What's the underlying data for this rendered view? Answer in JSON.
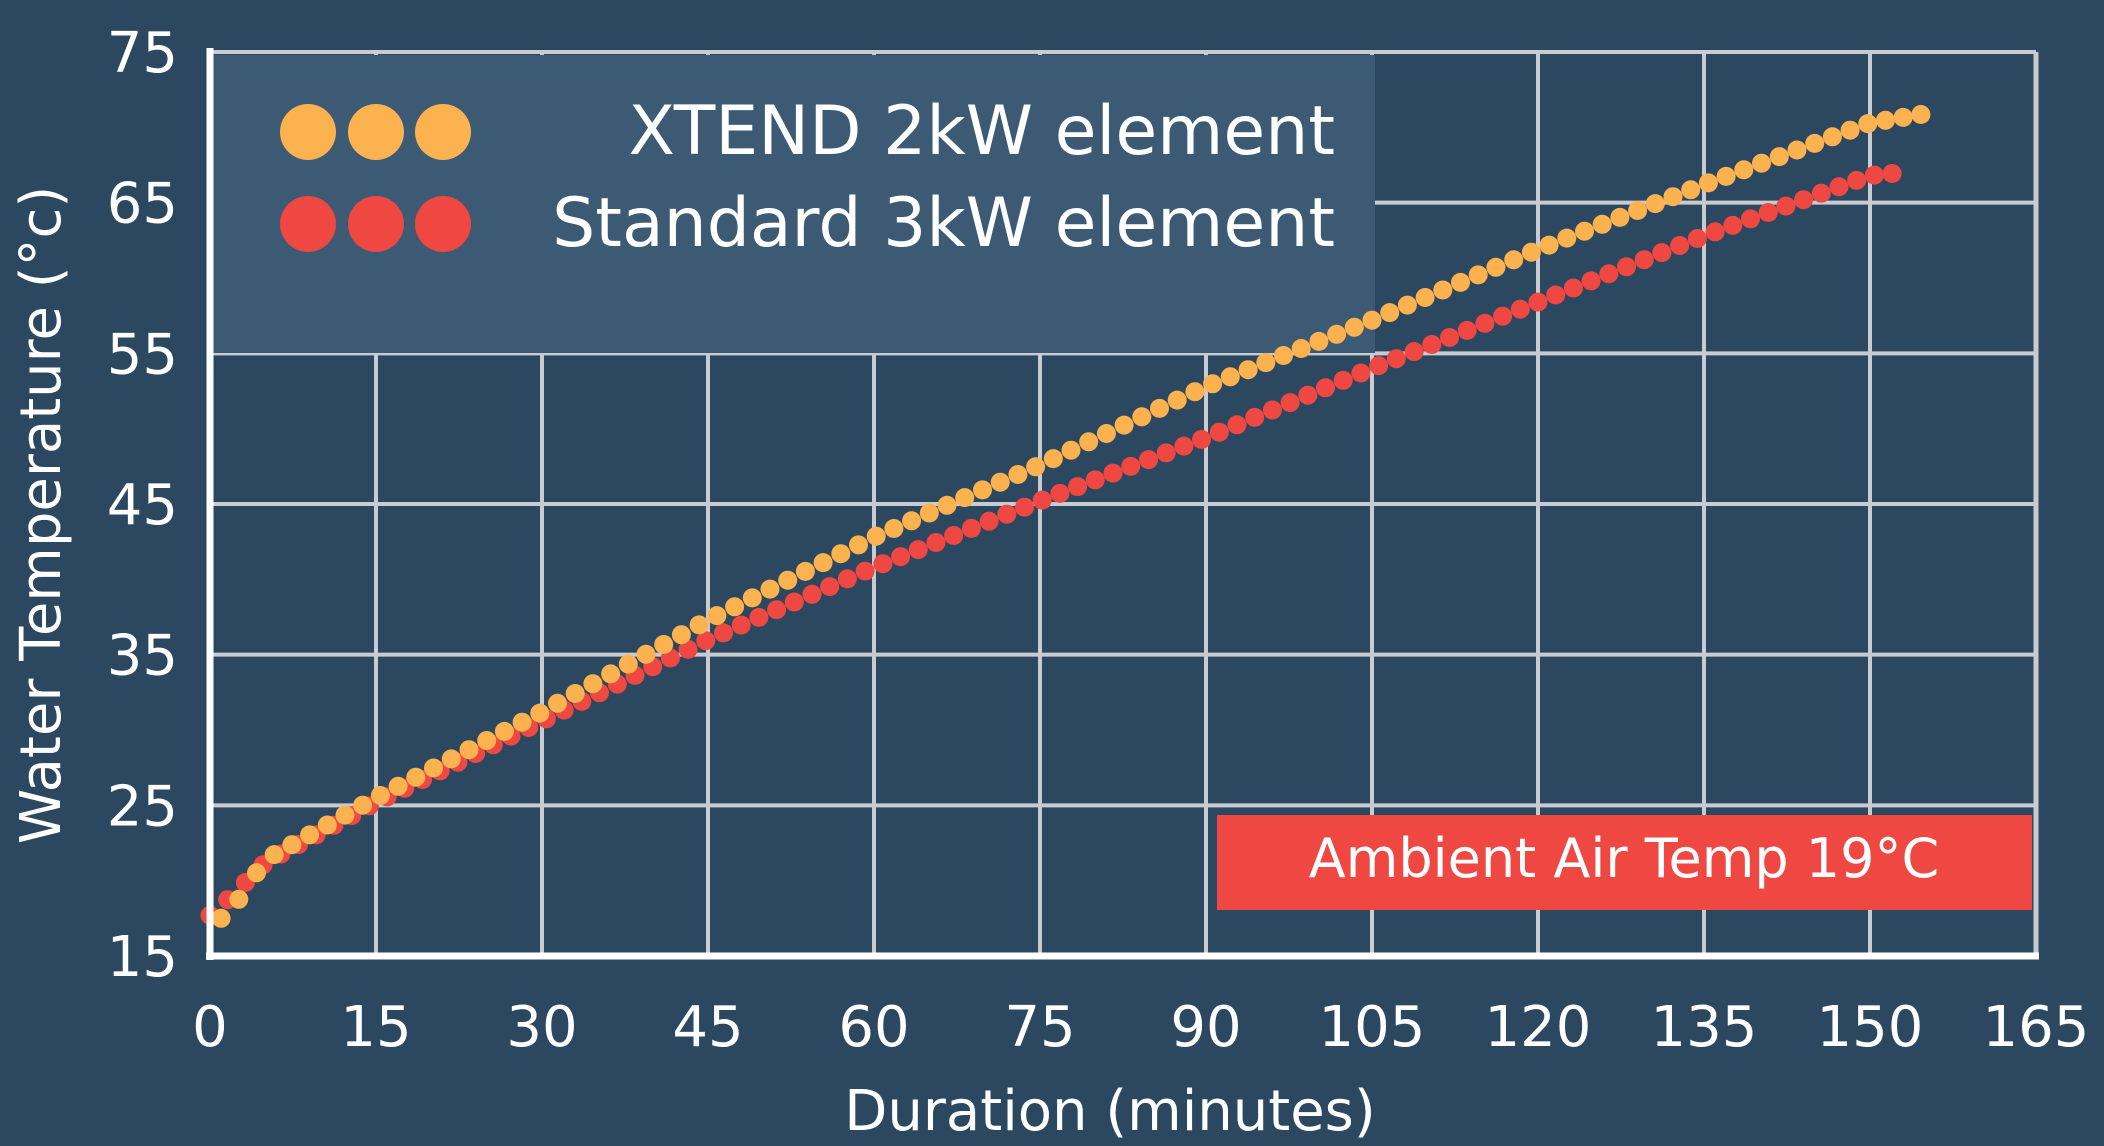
{
  "colors": {
    "background": "#2c4861",
    "grid": "#c8ccd1",
    "legend_box": "#3d5a75",
    "xtend": "#fbb24f",
    "standard": "#ef4842",
    "text": "#ffffff",
    "annotation_bg": "#ef4842"
  },
  "chart_data": {
    "type": "scatter",
    "title": "",
    "xlabel": "Duration (minutes)",
    "ylabel": "Water Temperature (°c)",
    "xlim": [
      0,
      165
    ],
    "ylim": [
      15,
      75
    ],
    "x_ticks": [
      "0",
      "15",
      "30",
      "45",
      "60",
      "75",
      "90",
      "105",
      "120",
      "135",
      "150",
      "165"
    ],
    "y_ticks": [
      "15",
      "25",
      "35",
      "45",
      "55",
      "65",
      "75"
    ],
    "grid": true,
    "legend_position": "top-left",
    "annotation": "Ambient Air Temp 19°C",
    "series": [
      {
        "name": "XTEND 2kW element",
        "color": "#fbb24f",
        "x_start": 1,
        "x_end": 155,
        "x_step": 1.6,
        "curve": [
          [
            1,
            17.5
          ],
          [
            2,
            18.1
          ],
          [
            5,
            21.4
          ],
          [
            15,
            25.5
          ],
          [
            30,
            31.2
          ],
          [
            45,
            37.3
          ],
          [
            60,
            42.8
          ],
          [
            75,
            47.6
          ],
          [
            90,
            52.8
          ],
          [
            105,
            57.2
          ],
          [
            120,
            61.9
          ],
          [
            135,
            66.2
          ],
          [
            150,
            70.3
          ],
          [
            155,
            70.9
          ]
        ]
      },
      {
        "name": "Standard 3kW element",
        "color": "#ef4842",
        "x_start": 0,
        "x_end": 153,
        "x_step": 1.6,
        "curve": [
          [
            0,
            17.7
          ],
          [
            2,
            19.0
          ],
          [
            5,
            21.2
          ],
          [
            15,
            25.2
          ],
          [
            30,
            30.6
          ],
          [
            45,
            36.0
          ],
          [
            60,
            40.8
          ],
          [
            75,
            45.2
          ],
          [
            90,
            49.4
          ],
          [
            105,
            54.0
          ],
          [
            120,
            58.4
          ],
          [
            135,
            62.8
          ],
          [
            150,
            66.8
          ],
          [
            153,
            67.0
          ]
        ]
      }
    ]
  }
}
